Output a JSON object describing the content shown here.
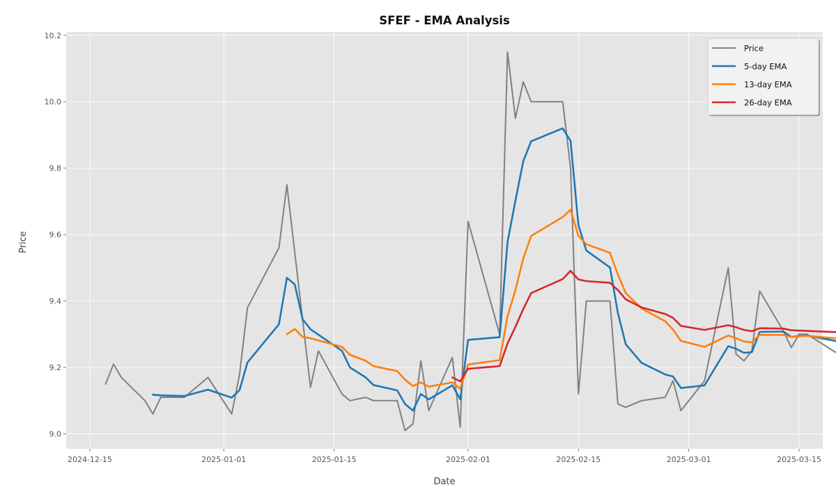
{
  "chart_data": {
    "type": "line",
    "title": "SFEF - EMA Analysis",
    "xlabel": "Date",
    "ylabel": "Price",
    "x_ticks": [
      "2024-12-15",
      "2025-01-01",
      "2025-01-15",
      "2025-02-01",
      "2025-02-15",
      "2025-03-01",
      "2025-03-15"
    ],
    "y_ticks": [
      "9.0",
      "9.2",
      "9.4",
      "9.6",
      "9.8",
      "10.0",
      "10.2"
    ],
    "xlim": [
      "2024-12-12",
      "2025-03-18"
    ],
    "ylim": [
      8.955,
      10.21
    ],
    "grid": true,
    "legend_position": "top-right",
    "colors": {
      "plot_background": "#e5e5e5",
      "grid": "#ffffff",
      "Price": "#808080",
      "5-day EMA": "#1f77b4",
      "13-day EMA": "#ff7f0e",
      "26-day EMA": "#d62728"
    },
    "series": [
      {
        "name": "Price",
        "points": [
          [
            "2024-12-17",
            9.15
          ],
          [
            "2024-12-18",
            9.21
          ],
          [
            "2024-12-19",
            9.17
          ],
          [
            "2024-12-22",
            9.1
          ],
          [
            "2024-12-23",
            9.06
          ],
          [
            "2024-12-24",
            9.11
          ],
          [
            "2024-12-27",
            9.11
          ],
          [
            "2024-12-30",
            9.17
          ],
          [
            "2025-01-02",
            9.06
          ],
          [
            "2025-01-03",
            9.18
          ],
          [
            "2025-01-04",
            9.38
          ],
          [
            "2025-01-08",
            9.56
          ],
          [
            "2025-01-09",
            9.75
          ],
          [
            "2025-01-12",
            9.14
          ],
          [
            "2025-01-13",
            9.25
          ],
          [
            "2025-01-16",
            9.12
          ],
          [
            "2025-01-17",
            9.1
          ],
          [
            "2025-01-19",
            9.11
          ],
          [
            "2025-01-20",
            9.1
          ],
          [
            "2025-01-23",
            9.1
          ],
          [
            "2025-01-24",
            9.01
          ],
          [
            "2025-01-25",
            9.03
          ],
          [
            "2025-01-26",
            9.22
          ],
          [
            "2025-01-27",
            9.07
          ],
          [
            "2025-01-30",
            9.23
          ],
          [
            "2025-01-31",
            9.02
          ],
          [
            "2025-02-01",
            9.64
          ],
          [
            "2025-02-05",
            9.3
          ],
          [
            "2025-02-06",
            10.15
          ],
          [
            "2025-02-07",
            9.95
          ],
          [
            "2025-02-08",
            10.06
          ],
          [
            "2025-02-09",
            10.0
          ],
          [
            "2025-02-13",
            10.0
          ],
          [
            "2025-02-14",
            9.8
          ],
          [
            "2025-02-15",
            9.12
          ],
          [
            "2025-02-16",
            9.4
          ],
          [
            "2025-02-19",
            9.4
          ],
          [
            "2025-02-20",
            9.09
          ],
          [
            "2025-02-21",
            9.08
          ],
          [
            "2025-02-23",
            9.1
          ],
          [
            "2025-02-26",
            9.11
          ],
          [
            "2025-02-27",
            9.16
          ],
          [
            "2025-02-28",
            9.07
          ],
          [
            "2025-03-03",
            9.16
          ],
          [
            "2025-03-06",
            9.5
          ],
          [
            "2025-03-07",
            9.24
          ],
          [
            "2025-03-08",
            9.22
          ],
          [
            "2025-03-09",
            9.25
          ],
          [
            "2025-03-10",
            9.43
          ],
          [
            "2025-03-13",
            9.31
          ],
          [
            "2025-03-14",
            9.26
          ],
          [
            "2025-03-15",
            9.3
          ],
          [
            "2025-03-16",
            9.3
          ],
          [
            "2025-03-20",
            9.24
          ]
        ]
      },
      {
        "name": "5-day EMA",
        "points": [
          [
            "2024-12-23",
            9.118
          ],
          [
            "2024-12-24",
            9.116
          ],
          [
            "2024-12-27",
            9.114
          ],
          [
            "2024-12-30",
            9.133
          ],
          [
            "2025-01-02",
            9.109
          ],
          [
            "2025-01-03",
            9.132
          ],
          [
            "2025-01-04",
            9.215
          ],
          [
            "2025-01-08",
            9.33
          ],
          [
            "2025-01-09",
            9.47
          ],
          [
            "2025-01-10",
            9.45
          ],
          [
            "2025-01-11",
            9.345
          ],
          [
            "2025-01-12",
            9.315
          ],
          [
            "2025-01-16",
            9.25
          ],
          [
            "2025-01-17",
            9.2
          ],
          [
            "2025-01-19",
            9.17
          ],
          [
            "2025-01-20",
            9.147
          ],
          [
            "2025-01-23",
            9.131
          ],
          [
            "2025-01-24",
            9.09
          ],
          [
            "2025-01-25",
            9.07
          ],
          [
            "2025-01-26",
            9.12
          ],
          [
            "2025-01-27",
            9.104
          ],
          [
            "2025-01-30",
            9.146
          ],
          [
            "2025-01-31",
            9.104
          ],
          [
            "2025-02-01",
            9.283
          ],
          [
            "2025-02-05",
            9.291
          ],
          [
            "2025-02-06",
            9.577
          ],
          [
            "2025-02-07",
            9.702
          ],
          [
            "2025-02-08",
            9.821
          ],
          [
            "2025-02-09",
            9.881
          ],
          [
            "2025-02-13",
            9.92
          ],
          [
            "2025-02-14",
            9.882
          ],
          [
            "2025-02-15",
            9.628
          ],
          [
            "2025-02-16",
            9.552
          ],
          [
            "2025-02-19",
            9.501
          ],
          [
            "2025-02-20",
            9.364
          ],
          [
            "2025-02-21",
            9.27
          ],
          [
            "2025-02-23",
            9.214
          ],
          [
            "2025-02-26",
            9.179
          ],
          [
            "2025-02-27",
            9.173
          ],
          [
            "2025-02-28",
            9.138
          ],
          [
            "2025-03-03",
            9.146
          ],
          [
            "2025-03-06",
            9.264
          ],
          [
            "2025-03-07",
            9.256
          ],
          [
            "2025-03-08",
            9.244
          ],
          [
            "2025-03-09",
            9.246
          ],
          [
            "2025-03-10",
            9.307
          ],
          [
            "2025-03-13",
            9.308
          ],
          [
            "2025-03-14",
            9.292
          ],
          [
            "2025-03-15",
            9.295
          ],
          [
            "2025-03-16",
            9.296
          ],
          [
            "2025-03-20",
            9.278
          ]
        ]
      },
      {
        "name": "13-day EMA",
        "points": [
          [
            "2025-01-09",
            9.3
          ],
          [
            "2025-01-10",
            9.316
          ],
          [
            "2025-01-11",
            9.292
          ],
          [
            "2025-01-12",
            9.288
          ],
          [
            "2025-01-16",
            9.262
          ],
          [
            "2025-01-17",
            9.238
          ],
          [
            "2025-01-19",
            9.22
          ],
          [
            "2025-01-20",
            9.204
          ],
          [
            "2025-01-23",
            9.189
          ],
          [
            "2025-01-24",
            9.163
          ],
          [
            "2025-01-25",
            9.144
          ],
          [
            "2025-01-26",
            9.155
          ],
          [
            "2025-01-27",
            9.142
          ],
          [
            "2025-01-30",
            9.155
          ],
          [
            "2025-01-31",
            9.136
          ],
          [
            "2025-02-01",
            9.209
          ],
          [
            "2025-02-05",
            9.222
          ],
          [
            "2025-02-06",
            9.354
          ],
          [
            "2025-02-07",
            9.433
          ],
          [
            "2025-02-08",
            9.528
          ],
          [
            "2025-02-09",
            9.596
          ],
          [
            "2025-02-13",
            9.653
          ],
          [
            "2025-02-14",
            9.675
          ],
          [
            "2025-02-15",
            9.596
          ],
          [
            "2025-02-16",
            9.571
          ],
          [
            "2025-02-19",
            9.545
          ],
          [
            "2025-02-20",
            9.48
          ],
          [
            "2025-02-21",
            9.424
          ],
          [
            "2025-02-23",
            9.378
          ],
          [
            "2025-02-26",
            9.339
          ],
          [
            "2025-02-27",
            9.314
          ],
          [
            "2025-02-28",
            9.28
          ],
          [
            "2025-03-03",
            9.262
          ],
          [
            "2025-03-06",
            9.296
          ],
          [
            "2025-03-07",
            9.288
          ],
          [
            "2025-03-08",
            9.278
          ],
          [
            "2025-03-09",
            9.276
          ],
          [
            "2025-03-10",
            9.298
          ],
          [
            "2025-03-13",
            9.298
          ],
          [
            "2025-03-14",
            9.292
          ],
          [
            "2025-03-15",
            9.294
          ],
          [
            "2025-03-16",
            9.295
          ],
          [
            "2025-03-20",
            9.287
          ]
        ]
      },
      {
        "name": "26-day EMA",
        "points": [
          [
            "2025-01-30",
            9.17
          ],
          [
            "2025-01-31",
            9.158
          ],
          [
            "2025-02-01",
            9.196
          ],
          [
            "2025-02-05",
            9.204
          ],
          [
            "2025-02-06",
            9.272
          ],
          [
            "2025-02-07",
            9.322
          ],
          [
            "2025-02-08",
            9.376
          ],
          [
            "2025-02-09",
            9.424
          ],
          [
            "2025-02-13",
            9.466
          ],
          [
            "2025-02-14",
            9.491
          ],
          [
            "2025-02-15",
            9.465
          ],
          [
            "2025-02-16",
            9.46
          ],
          [
            "2025-02-19",
            9.455
          ],
          [
            "2025-02-20",
            9.433
          ],
          [
            "2025-02-21",
            9.405
          ],
          [
            "2025-02-23",
            9.381
          ],
          [
            "2025-02-26",
            9.361
          ],
          [
            "2025-02-27",
            9.349
          ],
          [
            "2025-02-28",
            9.325
          ],
          [
            "2025-03-03",
            9.313
          ],
          [
            "2025-03-06",
            9.327
          ],
          [
            "2025-03-07",
            9.321
          ],
          [
            "2025-03-08",
            9.313
          ],
          [
            "2025-03-09",
            9.309
          ],
          [
            "2025-03-10",
            9.318
          ],
          [
            "2025-03-13",
            9.317
          ],
          [
            "2025-03-14",
            9.312
          ],
          [
            "2025-03-15",
            9.311
          ],
          [
            "2025-03-16",
            9.31
          ],
          [
            "2025-03-20",
            9.306
          ]
        ]
      }
    ]
  }
}
